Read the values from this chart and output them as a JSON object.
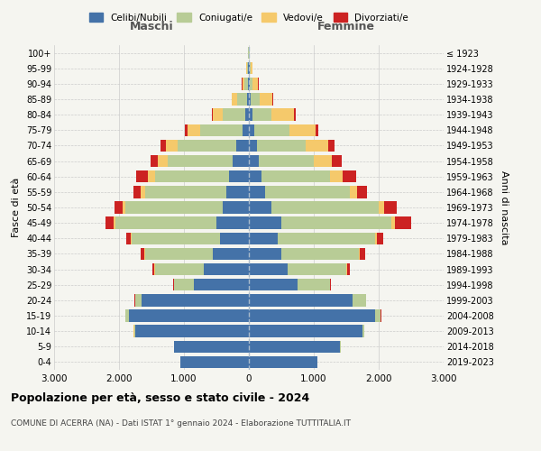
{
  "age_groups": [
    "0-4",
    "5-9",
    "10-14",
    "15-19",
    "20-24",
    "25-29",
    "30-34",
    "35-39",
    "40-44",
    "45-49",
    "50-54",
    "55-59",
    "60-64",
    "65-69",
    "70-74",
    "75-79",
    "80-84",
    "85-89",
    "90-94",
    "95-99",
    "100+"
  ],
  "birth_years": [
    "2019-2023",
    "2014-2018",
    "2009-2013",
    "2004-2008",
    "1999-2003",
    "1994-1998",
    "1989-1993",
    "1984-1988",
    "1979-1983",
    "1974-1978",
    "1969-1973",
    "1964-1968",
    "1959-1963",
    "1954-1958",
    "1949-1953",
    "1944-1948",
    "1939-1943",
    "1934-1938",
    "1929-1933",
    "1924-1928",
    "≤ 1923"
  ],
  "males": {
    "celibi": [
      1050,
      1150,
      1750,
      1850,
      1650,
      850,
      700,
      550,
      450,
      500,
      400,
      350,
      300,
      250,
      200,
      100,
      50,
      30,
      20,
      10,
      5
    ],
    "coniugati": [
      3,
      5,
      20,
      50,
      100,
      300,
      750,
      1050,
      1350,
      1550,
      1500,
      1250,
      1150,
      1000,
      900,
      650,
      350,
      150,
      50,
      15,
      5
    ],
    "vedovi": [
      0,
      1,
      1,
      1,
      2,
      3,
      5,
      10,
      15,
      30,
      40,
      60,
      100,
      150,
      180,
      200,
      150,
      80,
      30,
      10,
      2
    ],
    "divorziati": [
      0,
      1,
      2,
      3,
      5,
      10,
      30,
      60,
      80,
      130,
      130,
      120,
      180,
      120,
      80,
      30,
      20,
      10,
      5,
      2,
      0
    ]
  },
  "females": {
    "nubili": [
      1050,
      1400,
      1750,
      1950,
      1600,
      750,
      600,
      500,
      450,
      500,
      350,
      250,
      200,
      150,
      120,
      80,
      50,
      30,
      20,
      10,
      5
    ],
    "coniugate": [
      5,
      10,
      30,
      80,
      200,
      500,
      900,
      1200,
      1500,
      1700,
      1650,
      1300,
      1050,
      850,
      750,
      550,
      300,
      130,
      40,
      15,
      5
    ],
    "vedove": [
      0,
      1,
      1,
      2,
      3,
      5,
      10,
      15,
      25,
      50,
      80,
      120,
      200,
      280,
      350,
      400,
      350,
      200,
      80,
      25,
      5
    ],
    "divorziate": [
      0,
      1,
      3,
      5,
      8,
      15,
      40,
      80,
      100,
      250,
      200,
      150,
      200,
      150,
      100,
      40,
      25,
      15,
      8,
      3,
      0
    ]
  },
  "colors": {
    "celibi_nubili": "#4472a8",
    "coniugati": "#b8cc96",
    "vedovi": "#f5c96b",
    "divorziati": "#cc2222"
  },
  "xlim": 3000,
  "title": "Popolazione per età, sesso e stato civile - 2024",
  "subtitle": "COMUNE DI ACERRA (NA) - Dati ISTAT 1° gennaio 2024 - Elaborazione TUTTITALIA.IT",
  "ylabel_left": "Fasce di età",
  "ylabel_right": "Anni di nascita",
  "xlabel_left": "Maschi",
  "xlabel_right": "Femmine",
  "label_color_left": "#555555",
  "label_color_right": "#555555",
  "bg_color": "#f5f5f0",
  "grid_color": "#cccccc"
}
